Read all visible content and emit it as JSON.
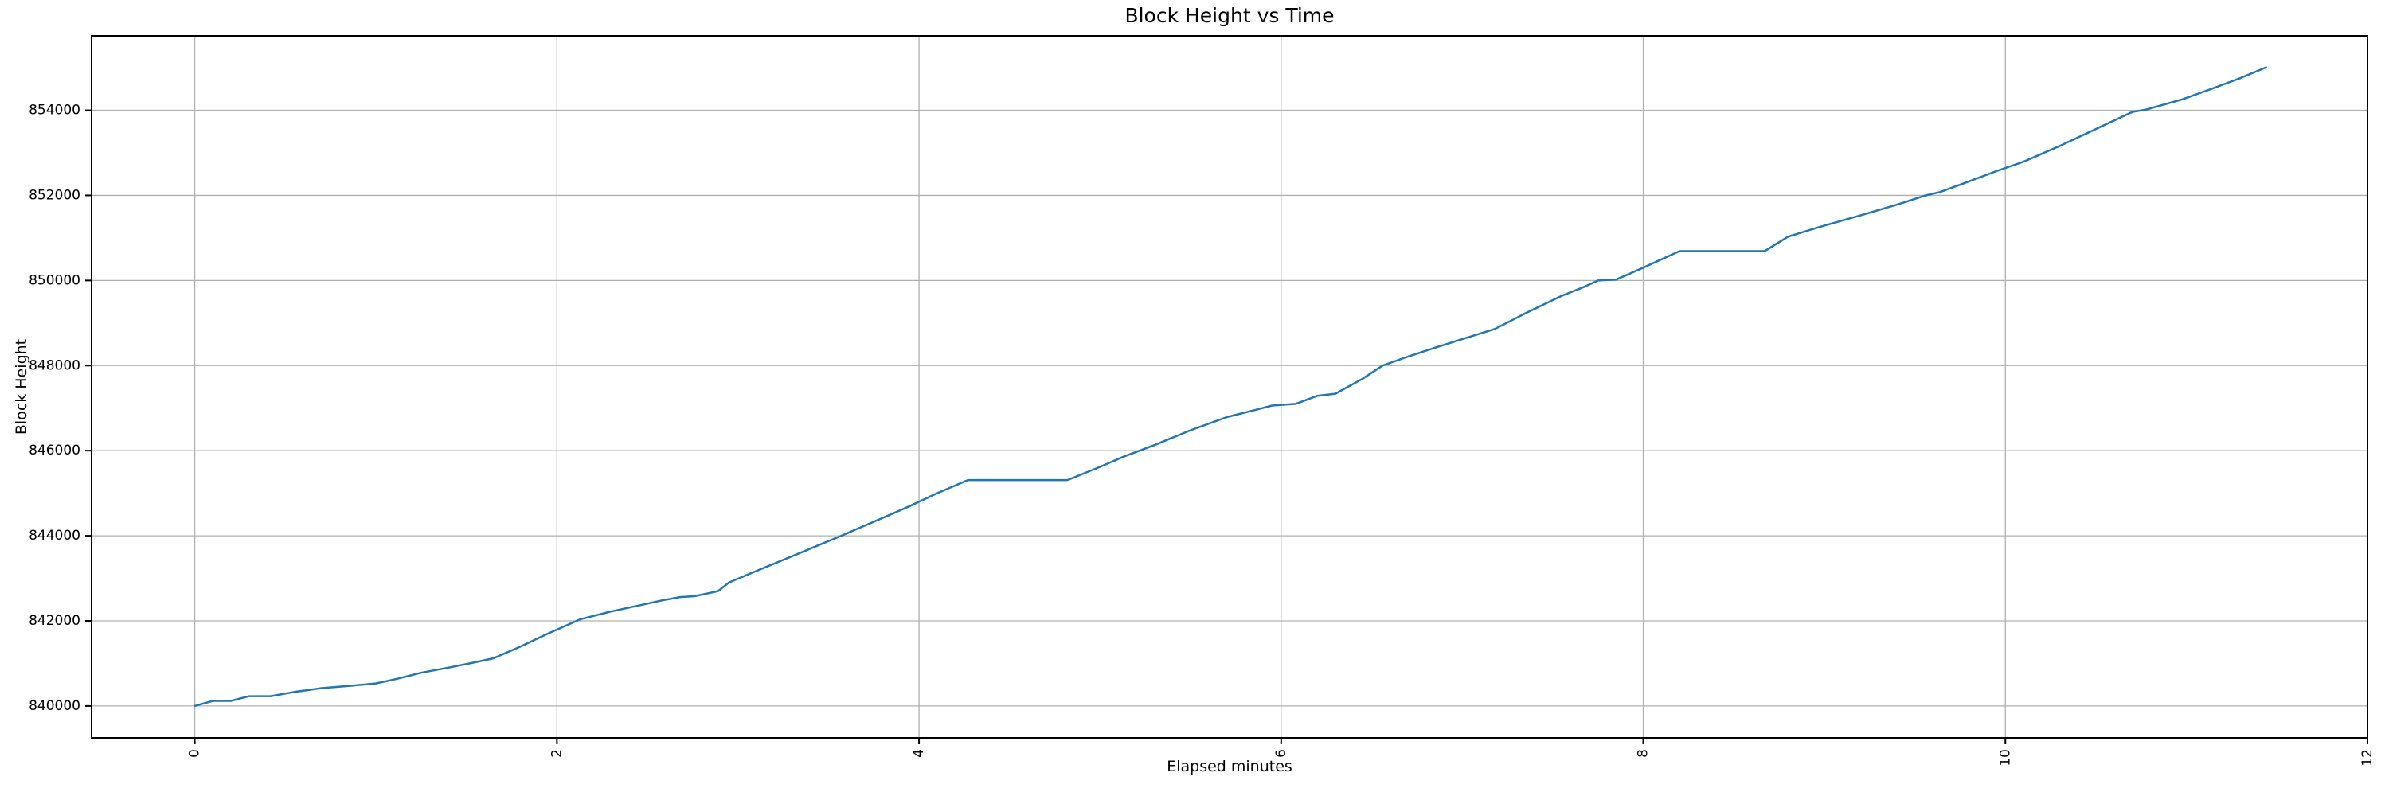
{
  "chart_data": {
    "type": "line",
    "title": "Block Height vs Time",
    "xlabel": "Elapsed minutes",
    "ylabel": "Block Height",
    "grid": true,
    "legend": "none",
    "xlim": [
      -0.57,
      12.0
    ],
    "ylim": [
      839250,
      855750
    ],
    "xticks": [
      0,
      2,
      4,
      6,
      8,
      10,
      12
    ],
    "xtick_rotation": 90,
    "yticks": [
      840000,
      842000,
      844000,
      846000,
      848000,
      850000,
      852000,
      854000
    ],
    "line_color": "#1f77b4",
    "grid_color": "#b0b0b0",
    "spine_color": "#000000",
    "series": [
      {
        "name": "Block Height",
        "points": [
          [
            0.0,
            840000
          ],
          [
            0.1,
            840120
          ],
          [
            0.2,
            840120
          ],
          [
            0.3,
            840230
          ],
          [
            0.42,
            840230
          ],
          [
            0.55,
            840330
          ],
          [
            0.7,
            840420
          ],
          [
            0.85,
            840470
          ],
          [
            1.0,
            840530
          ],
          [
            1.12,
            840640
          ],
          [
            1.25,
            840780
          ],
          [
            1.4,
            840900
          ],
          [
            1.53,
            841010
          ],
          [
            1.65,
            841120
          ],
          [
            1.8,
            841400
          ],
          [
            1.95,
            841700
          ],
          [
            2.13,
            842040
          ],
          [
            2.3,
            842220
          ],
          [
            2.45,
            842360
          ],
          [
            2.58,
            842480
          ],
          [
            2.68,
            842560
          ],
          [
            2.76,
            842580
          ],
          [
            2.89,
            842700
          ],
          [
            2.95,
            842900
          ],
          [
            3.1,
            843170
          ],
          [
            3.3,
            843520
          ],
          [
            3.57,
            844000
          ],
          [
            3.75,
            844330
          ],
          [
            3.95,
            844700
          ],
          [
            4.1,
            845000
          ],
          [
            4.27,
            845310
          ],
          [
            4.82,
            845310
          ],
          [
            5.0,
            845620
          ],
          [
            5.13,
            845860
          ],
          [
            5.3,
            846130
          ],
          [
            5.5,
            846480
          ],
          [
            5.7,
            846790
          ],
          [
            5.85,
            846950
          ],
          [
            5.95,
            847060
          ],
          [
            6.08,
            847100
          ],
          [
            6.2,
            847290
          ],
          [
            6.3,
            847340
          ],
          [
            6.45,
            847690
          ],
          [
            6.56,
            848000
          ],
          [
            6.7,
            848210
          ],
          [
            6.85,
            848420
          ],
          [
            7.0,
            848620
          ],
          [
            7.18,
            848860
          ],
          [
            7.35,
            849230
          ],
          [
            7.55,
            849640
          ],
          [
            7.68,
            849860
          ],
          [
            7.75,
            850000
          ],
          [
            7.85,
            850020
          ],
          [
            8.0,
            850300
          ],
          [
            8.2,
            850690
          ],
          [
            8.67,
            850690
          ],
          [
            8.8,
            851030
          ],
          [
            9.0,
            851290
          ],
          [
            9.2,
            851530
          ],
          [
            9.4,
            851780
          ],
          [
            9.56,
            852000
          ],
          [
            9.64,
            852080
          ],
          [
            9.8,
            852330
          ],
          [
            9.95,
            852570
          ],
          [
            10.1,
            852790
          ],
          [
            10.3,
            853160
          ],
          [
            10.5,
            853560
          ],
          [
            10.7,
            853960
          ],
          [
            10.78,
            854020
          ],
          [
            10.98,
            854260
          ],
          [
            11.15,
            854520
          ],
          [
            11.3,
            854760
          ],
          [
            11.44,
            855010
          ]
        ]
      }
    ]
  }
}
